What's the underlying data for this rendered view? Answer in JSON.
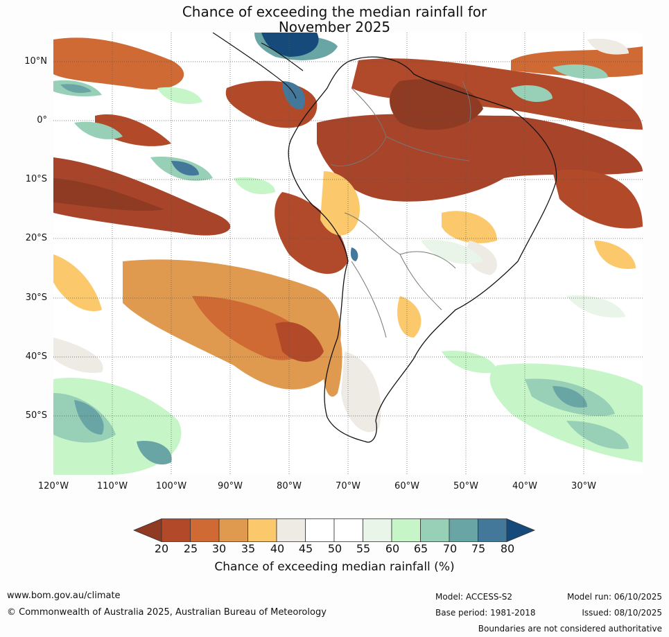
{
  "title_line1": "Chance of exceeding the median rainfall for",
  "title_line2": "November 2025",
  "map": {
    "lat_labels": [
      "10°N",
      "0°",
      "10°S",
      "20°S",
      "30°S",
      "40°S",
      "50°S"
    ],
    "lon_labels": [
      "120°W",
      "110°W",
      "100°W",
      "90°W",
      "80°W",
      "70°W",
      "60°W",
      "50°W",
      "40°W",
      "30°W"
    ]
  },
  "legend": {
    "title": "Chance of exceeding median rainfall (%)",
    "ticks": [
      "20",
      "25",
      "30",
      "35",
      "40",
      "45",
      "50",
      "55",
      "60",
      "65",
      "70",
      "75",
      "80"
    ],
    "colors": [
      "#8f3a22",
      "#b24a2a",
      "#cf6a35",
      "#e09a4f",
      "#fbc96b",
      "#eeebe5",
      "#ffffff",
      "#ffffff",
      "#e8f5e8",
      "#c6f5c8",
      "#98cfb7",
      "#6aa5a5",
      "#44789a",
      "#164a7a"
    ]
  },
  "footer": {
    "url": "www.bom.gov.au/climate",
    "copyright": "© Commonwealth of Australia 2025, Australian Bureau of Meteorology",
    "model": "Model: ACCESS-S2",
    "base_period": "Base period: 1981-2018",
    "model_run": "Model run: 06/10/2025",
    "issued": "Issued: 08/10/2025",
    "disclaimer": "Boundaries are not considered authoritative"
  }
}
